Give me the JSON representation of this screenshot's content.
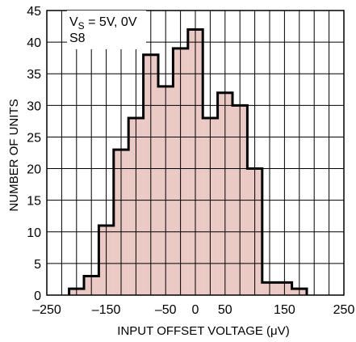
{
  "chart_data": {
    "type": "bar",
    "title": "",
    "xlabel": "INPUT OFFSET VOLTAGE (μV)",
    "ylabel": "NUMBER OF UNITS",
    "xlim": [
      -250,
      250
    ],
    "ylim": [
      0,
      45
    ],
    "grid": true,
    "x_ticks": [
      -250,
      -150,
      -50,
      0,
      50,
      150,
      250
    ],
    "x_tick_labels": [
      "–250",
      "–150",
      "–50",
      "0",
      "50",
      "150",
      "250"
    ],
    "y_ticks": [
      0,
      5,
      10,
      15,
      20,
      25,
      30,
      35,
      40,
      45
    ],
    "y_tick_labels": [
      "0",
      "5",
      "10",
      "15",
      "20",
      "25",
      "30",
      "35",
      "40",
      "45"
    ],
    "bin_width": 25,
    "bins": [
      {
        "x": -200,
        "value": 1
      },
      {
        "x": -175,
        "value": 3
      },
      {
        "x": -150,
        "value": 11
      },
      {
        "x": -125,
        "value": 23
      },
      {
        "x": -100,
        "value": 28
      },
      {
        "x": -75,
        "value": 38
      },
      {
        "x": -50,
        "value": 33
      },
      {
        "x": -25,
        "value": 39
      },
      {
        "x": 0,
        "value": 42
      },
      {
        "x": 25,
        "value": 28
      },
      {
        "x": 50,
        "value": 32
      },
      {
        "x": 75,
        "value": 30
      },
      {
        "x": 100,
        "value": 20
      },
      {
        "x": 125,
        "value": 2
      },
      {
        "x": 150,
        "value": 2
      },
      {
        "x": 175,
        "value": 1
      }
    ],
    "annotation": {
      "prefix": "V",
      "subscript": "S",
      "suffix": " = 5V, 0V",
      "line2": "S8"
    },
    "colors": {
      "fill": "#e8c0bb",
      "stroke": "#000000",
      "grid": "#000000"
    }
  }
}
